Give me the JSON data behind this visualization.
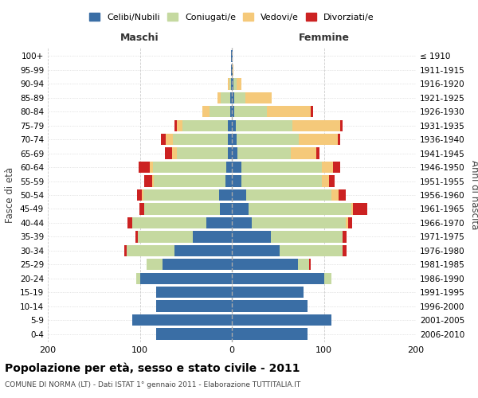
{
  "age_groups": [
    "0-4",
    "5-9",
    "10-14",
    "15-19",
    "20-24",
    "25-29",
    "30-34",
    "35-39",
    "40-44",
    "45-49",
    "50-54",
    "55-59",
    "60-64",
    "65-69",
    "70-74",
    "75-79",
    "80-84",
    "85-89",
    "90-94",
    "95-99",
    "100+"
  ],
  "birth_years": [
    "2006-2010",
    "2001-2005",
    "1996-2000",
    "1991-1995",
    "1986-1990",
    "1981-1985",
    "1976-1980",
    "1971-1975",
    "1966-1970",
    "1961-1965",
    "1956-1960",
    "1951-1955",
    "1946-1950",
    "1941-1945",
    "1936-1940",
    "1931-1935",
    "1926-1930",
    "1921-1925",
    "1916-1920",
    "1911-1915",
    "≤ 1910"
  ],
  "male": {
    "celibe": [
      82,
      108,
      82,
      82,
      100,
      75,
      62,
      42,
      28,
      13,
      14,
      7,
      6,
      4,
      4,
      4,
      2,
      2,
      1,
      1,
      1
    ],
    "coniugato": [
      0,
      0,
      0,
      0,
      4,
      18,
      52,
      60,
      80,
      82,
      82,
      78,
      80,
      56,
      60,
      50,
      22,
      10,
      2,
      0,
      0
    ],
    "vedovo": [
      0,
      0,
      0,
      0,
      0,
      0,
      0,
      0,
      0,
      0,
      2,
      2,
      3,
      5,
      8,
      6,
      8,
      4,
      1,
      0,
      0
    ],
    "divorziato": [
      0,
      0,
      0,
      0,
      0,
      0,
      3,
      3,
      5,
      5,
      5,
      8,
      12,
      8,
      5,
      2,
      0,
      0,
      0,
      0,
      0
    ]
  },
  "female": {
    "nubile": [
      82,
      108,
      82,
      78,
      100,
      72,
      52,
      42,
      22,
      18,
      16,
      10,
      10,
      6,
      5,
      4,
      3,
      3,
      2,
      1,
      1
    ],
    "coniugata": [
      0,
      0,
      0,
      0,
      8,
      12,
      68,
      78,
      102,
      112,
      92,
      88,
      88,
      58,
      68,
      62,
      35,
      12,
      3,
      0,
      0
    ],
    "vedova": [
      0,
      0,
      0,
      0,
      0,
      0,
      0,
      0,
      2,
      2,
      8,
      8,
      12,
      28,
      42,
      52,
      48,
      28,
      5,
      1,
      0
    ],
    "divorziata": [
      0,
      0,
      0,
      0,
      0,
      2,
      5,
      5,
      5,
      15,
      8,
      6,
      8,
      3,
      3,
      2,
      2,
      0,
      0,
      0,
      0
    ]
  },
  "colors": {
    "celibe": "#3a6ea5",
    "coniugato": "#c5d9a0",
    "vedovo": "#f5c97a",
    "divorziato": "#cc2222"
  },
  "legend_labels": [
    "Celibi/Nubili",
    "Coniugati/e",
    "Vedovi/e",
    "Divorziati/e"
  ],
  "title": "Popolazione per età, sesso e stato civile - 2011",
  "subtitle": "COMUNE DI NORMA (LT) - Dati ISTAT 1° gennaio 2011 - Elaborazione TUTTITALIA.IT",
  "xlabel_left": "Maschi",
  "xlabel_right": "Femmine",
  "ylabel_left": "Fasce di età",
  "ylabel_right": "Anni di nascita",
  "xlim": 200
}
